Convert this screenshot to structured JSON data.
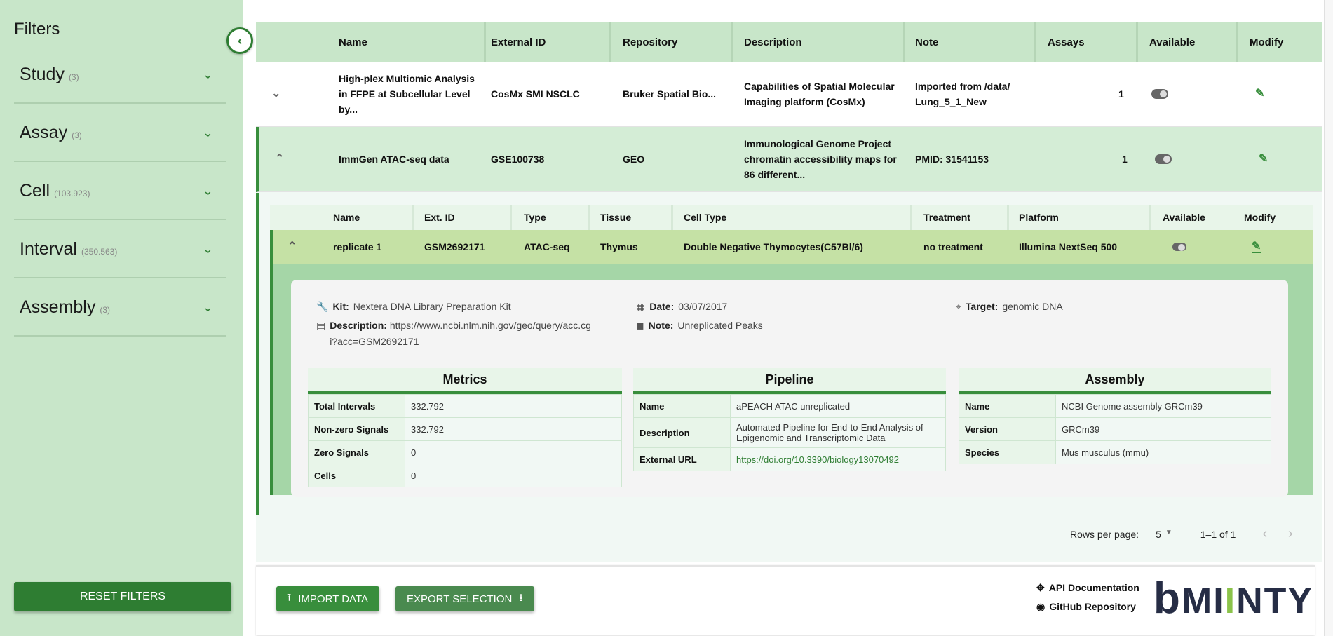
{
  "sidebar": {
    "title": "Filters",
    "items": [
      {
        "label": "Study",
        "count": "(3)"
      },
      {
        "label": "Assay",
        "count": "(3)"
      },
      {
        "label": "Cell",
        "count": "(103.923)"
      },
      {
        "label": "Interval",
        "count": "(350.563)"
      },
      {
        "label": "Assembly",
        "count": "(3)"
      }
    ],
    "reset_label": "RESET FILTERS"
  },
  "table": {
    "columns": [
      "Name",
      "External ID",
      "Repository",
      "Description",
      "Note",
      "Assays",
      "Available",
      "Modify"
    ],
    "rows": [
      {
        "name": "High-plex Multiomic Analysis in FFPE at Subcellular Level by...",
        "external_id": "CosMx SMI NSCLC",
        "repository": "Bruker Spatial Bio...",
        "description": "Capabilities of Spatial Molecular Imaging platform (CosMx)",
        "note": "Imported from /data/ Lung_5_1_New",
        "assays": "1",
        "available": true,
        "expanded": false
      },
      {
        "name": "ImmGen ATAC-seq data",
        "external_id": "GSE100738",
        "repository": "GEO",
        "description": "Immunological Genome Project chromatin accessibility maps for 86 different...",
        "note": "PMID: 31541153",
        "assays": "1",
        "available": true,
        "expanded": true
      }
    ]
  },
  "assays": {
    "columns": [
      "Name",
      "Ext. ID",
      "Type",
      "Tissue",
      "Cell Type",
      "Treatment",
      "Platform",
      "Available",
      "Modify"
    ],
    "row": {
      "name": "replicate 1",
      "ext_id": "GSM2692171",
      "type": "ATAC-seq",
      "tissue": "Thymus",
      "cell_type": "Double Negative Thymocytes(C57Bl/6)",
      "treatment": "no treatment",
      "platform": "Illumina NextSeq 500",
      "available": true
    }
  },
  "details": {
    "kit_label": "Kit:",
    "kit": "Nextera DNA Library Preparation Kit",
    "description_label": "Description:",
    "description": "https://www.ncbi.nlm.nih.gov/geo/query/acc.cgi?acc=GSM2692171",
    "date_label": "Date:",
    "date": "03/07/2017",
    "note_label": "Note:",
    "note": "Unreplicated Peaks",
    "target_label": "Target:",
    "target": "genomic DNA",
    "metrics": {
      "title": "Metrics",
      "rows": [
        [
          "Total Intervals",
          "332.792"
        ],
        [
          "Non-zero Signals",
          "332.792"
        ],
        [
          "Zero Signals",
          "0"
        ],
        [
          "Cells",
          "0"
        ]
      ]
    },
    "pipeline": {
      "title": "Pipeline",
      "rows": [
        [
          "Name",
          "aPEACH ATAC unreplicated"
        ],
        [
          "Description",
          "Automated Pipeline for End-to-End Analysis of Epigenomic and Transcriptomic Data"
        ],
        [
          "External URL",
          "https://doi.org/10.3390/biology13070492"
        ]
      ]
    },
    "assembly": {
      "title": "Assembly",
      "rows": [
        [
          "Name",
          "NCBI Genome assembly GRCm39"
        ],
        [
          "Version",
          "GRCm39"
        ],
        [
          "Species",
          "Mus musculus (mmu)"
        ]
      ]
    }
  },
  "pagination": {
    "rows_per_page_label": "Rows per page:",
    "rows_per_page": "5",
    "range": "1–1 of 1"
  },
  "footer": {
    "import_label": "IMPORT DATA",
    "export_label": "EXPORT SELECTION",
    "api_doc": "API Documentation",
    "github": "GitHub Repository",
    "logo": "bMINTY"
  },
  "colors": {
    "primary": "#2e7d32",
    "sidebar": "#c8e6c9",
    "expanded": "#a5d6a7",
    "assay_row": "#c5e1a5"
  }
}
